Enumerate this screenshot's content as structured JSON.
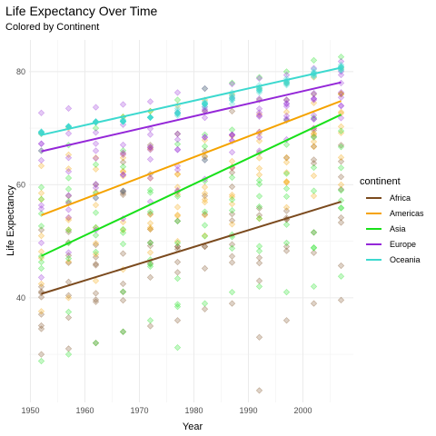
{
  "chart_data": {
    "type": "scatter",
    "title": "Life Expectancy Over Time",
    "subtitle": "Colored by Continent",
    "xlabel": "Year",
    "ylabel": "Life Expectancy",
    "xlim": [
      1949.75,
      2009.25
    ],
    "ylim": [
      21.5,
      85.6
    ],
    "x_ticks": [
      1950,
      1960,
      1970,
      1980,
      1990,
      2000
    ],
    "y_ticks": [
      40,
      60,
      80
    ],
    "grid": true,
    "legend": {
      "title": "continent",
      "position": "right"
    },
    "years": [
      1952,
      1957,
      1962,
      1967,
      1972,
      1977,
      1982,
      1987,
      1992,
      1997,
      2002,
      2007
    ],
    "series": [
      {
        "name": "Africa",
        "color": "#7b4a1e",
        "point_alpha": 0.25,
        "trend": [
          [
            1952,
            40.7
          ],
          [
            2007,
            57.0
          ]
        ],
        "spread": [
          [
            30,
            52
          ],
          [
            31,
            58
          ],
          [
            32,
            60
          ],
          [
            34,
            64
          ],
          [
            35,
            67
          ],
          [
            36,
            69
          ],
          [
            38,
            73
          ],
          [
            39,
            73
          ],
          [
            23.6,
            75
          ],
          [
            36,
            75
          ],
          [
            39,
            76
          ],
          [
            39.6,
            76
          ]
        ]
      },
      {
        "name": "Americas",
        "color": "#f5a300",
        "point_alpha": 0.25,
        "trend": [
          [
            1952,
            54.6
          ],
          [
            2007,
            74.8
          ]
        ],
        "spread": [
          [
            37.6,
            69
          ],
          [
            40,
            70
          ],
          [
            43,
            71
          ],
          [
            45,
            72
          ],
          [
            48,
            73
          ],
          [
            50,
            74
          ],
          [
            51,
            75
          ],
          [
            53,
            76
          ],
          [
            54,
            77
          ],
          [
            56,
            78
          ],
          [
            58,
            79
          ],
          [
            60,
            80.6
          ]
        ]
      },
      {
        "name": "Asia",
        "color": "#18e01a",
        "point_alpha": 0.25,
        "trend": [
          [
            1952,
            47.4
          ],
          [
            2007,
            72.4
          ]
        ],
        "spread": [
          [
            28.8,
            66
          ],
          [
            30,
            67
          ],
          [
            32,
            70
          ],
          [
            34,
            72
          ],
          [
            36,
            73
          ],
          [
            31.2,
            75
          ],
          [
            39,
            77
          ],
          [
            41,
            78
          ],
          [
            42,
            79
          ],
          [
            41,
            80
          ],
          [
            42,
            82
          ],
          [
            43.8,
            82.6
          ]
        ]
      },
      {
        "name": "Europe",
        "color": "#9427d8",
        "point_alpha": 0.25,
        "trend": [
          [
            1952,
            65.9
          ],
          [
            2007,
            78.1
          ]
        ],
        "spread": [
          [
            43.6,
            72.7
          ],
          [
            48,
            73.5
          ],
          [
            52,
            73.7
          ],
          [
            54,
            74.2
          ],
          [
            57,
            74.7
          ],
          [
            59,
            76.3
          ],
          [
            61,
            77
          ],
          [
            63,
            77.8
          ],
          [
            66,
            78.8
          ],
          [
            68,
            79.4
          ],
          [
            70,
            80.6
          ],
          [
            71.8,
            81.8
          ]
        ]
      },
      {
        "name": "Oceania",
        "color": "#3dd9cf",
        "point_alpha": 0.25,
        "trend": [
          [
            1952,
            68.8
          ],
          [
            2007,
            80.7
          ]
        ],
        "spread": [
          [
            69,
            69.4
          ],
          [
            70.3,
            70.3
          ],
          [
            71,
            71.2
          ],
          [
            71.1,
            71.5
          ],
          [
            71.9,
            71.9
          ],
          [
            72.2,
            73.5
          ],
          [
            73.8,
            74.7
          ],
          [
            74.3,
            76.3
          ],
          [
            76.3,
            77.6
          ],
          [
            77.6,
            78.8
          ],
          [
            79.1,
            80.4
          ],
          [
            80.2,
            81.2
          ]
        ]
      }
    ]
  }
}
